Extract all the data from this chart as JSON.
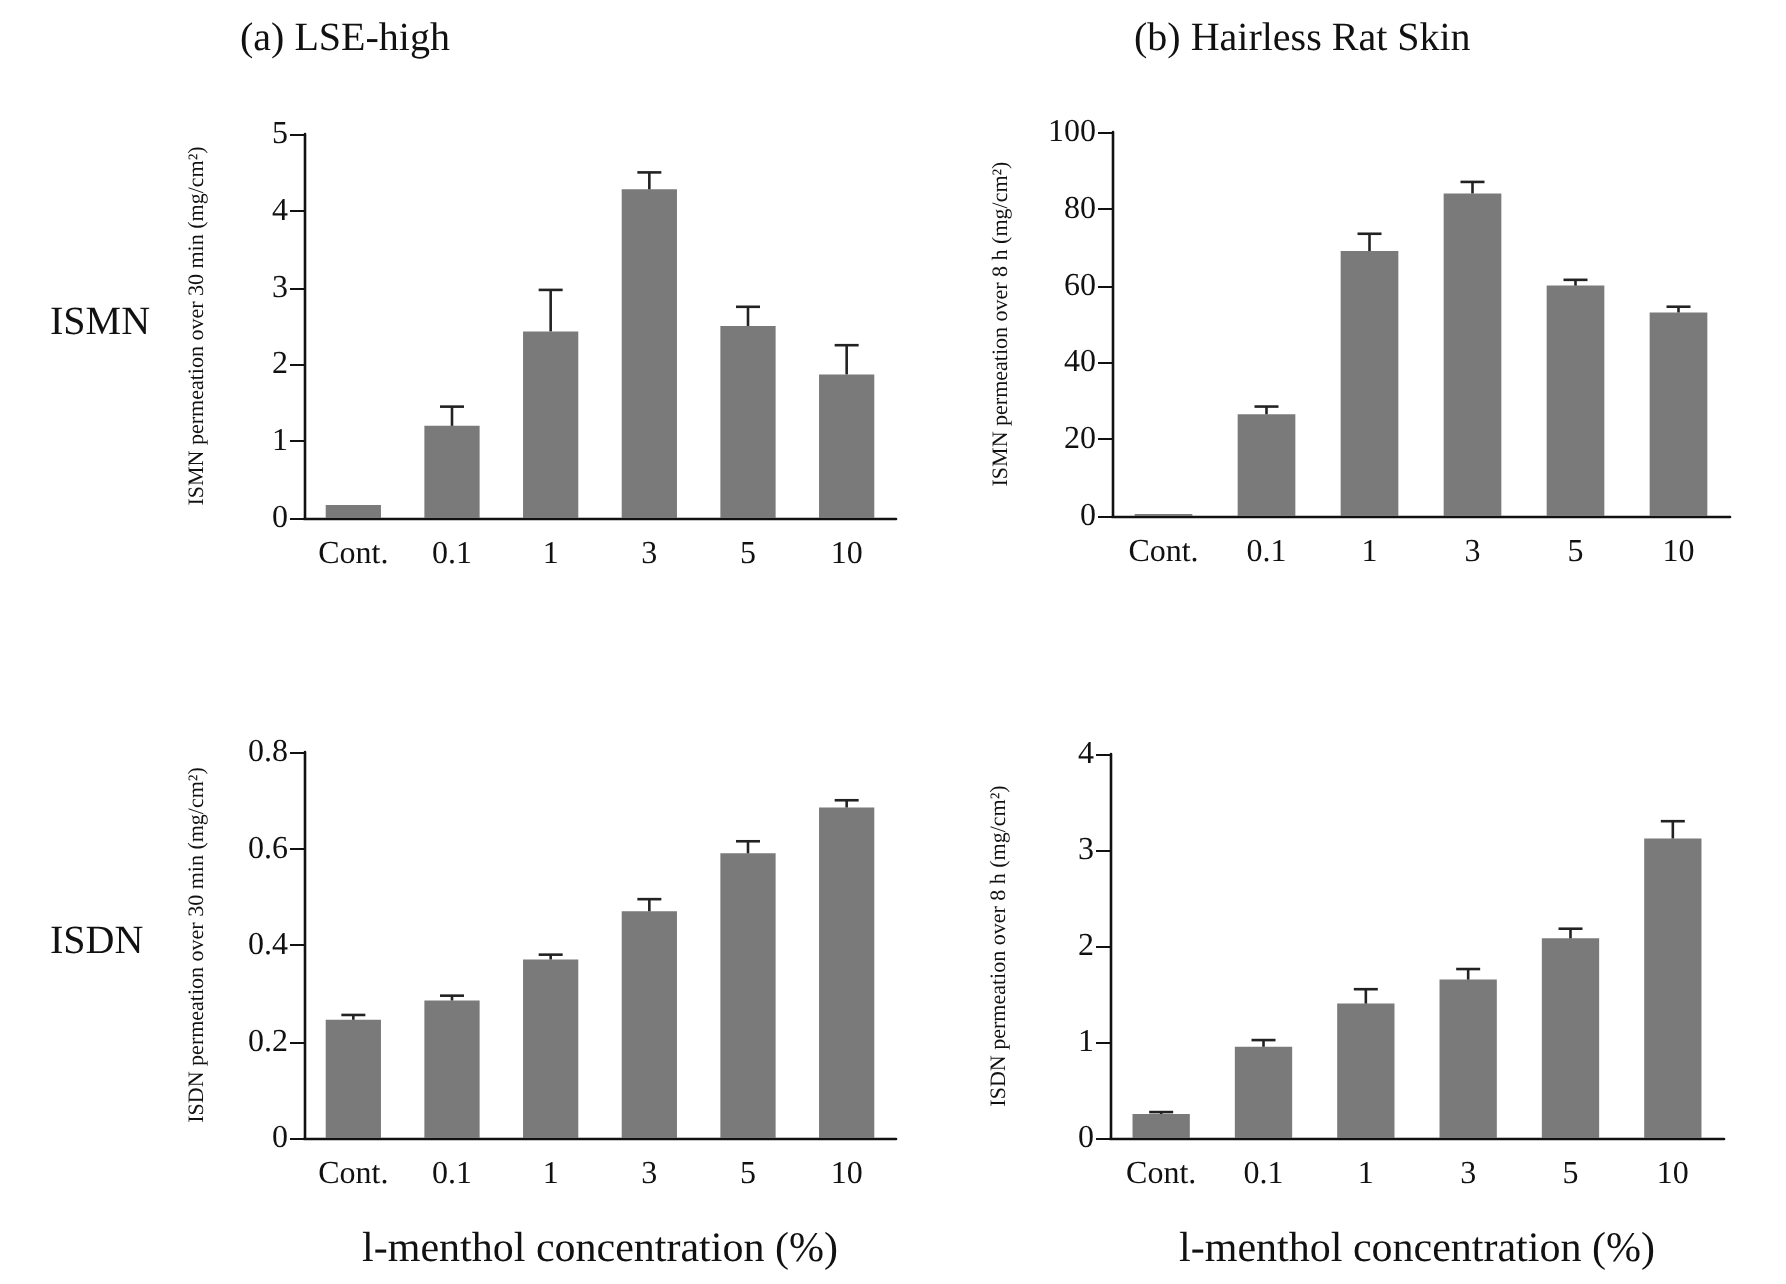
{
  "chart_data": [
    {
      "type": "bar",
      "title": "(a) LSE-high",
      "ylabel": "ISMN permeation over 30 min (mg/cm²)",
      "annotations": [
        "ISMN"
      ],
      "categories": [
        "Cont.",
        "0.1",
        "1",
        "3",
        "5",
        "10"
      ],
      "values": [
        0.17,
        1.2,
        2.43,
        4.28,
        2.5,
        1.87
      ],
      "errors": [
        null,
        [
          1.2,
          1.45
        ],
        [
          2.43,
          2.97
        ],
        [
          4.28,
          4.5
        ],
        [
          2.5,
          2.75
        ],
        [
          1.87,
          2.25
        ]
      ],
      "color": "#7a7a7a",
      "ylim": [
        0,
        5
      ],
      "yticks": [
        0,
        1,
        2,
        3,
        4,
        5
      ],
      "grid": false
    },
    {
      "type": "bar",
      "title": "(b) Hairless Rat Skin",
      "ylabel": "ISMN permeation over 8 h (mg/cm²)",
      "categories": [
        "Cont.",
        "0.1",
        "1",
        "3",
        "5",
        "10"
      ],
      "values": [
        0.5,
        26.5,
        69,
        84,
        60,
        53
      ],
      "errors": [
        null,
        [
          26.5,
          28.5
        ],
        [
          69,
          73.5
        ],
        [
          84,
          87
        ],
        [
          60,
          61.5
        ],
        [
          53,
          54.5
        ]
      ],
      "color": "#7a7a7a",
      "ylim": [
        0,
        100
      ],
      "yticks": [
        0,
        20,
        40,
        60,
        80,
        100
      ],
      "grid": false
    },
    {
      "type": "bar",
      "xlabel": "l-menthol concentration (%)",
      "ylabel": "ISDN permeation over 30 min (mg/cm²)",
      "annotations": [
        "ISDN"
      ],
      "categories": [
        "Cont.",
        "0.1",
        "1",
        "3",
        "5",
        "10"
      ],
      "values": [
        0.245,
        0.285,
        0.37,
        0.47,
        0.59,
        0.685
      ],
      "errors": [
        [
          0.245,
          0.255
        ],
        [
          0.285,
          0.295
        ],
        [
          0.37,
          0.38
        ],
        [
          0.47,
          0.495
        ],
        [
          0.59,
          0.615
        ],
        [
          0.685,
          0.7
        ]
      ],
      "color": "#7a7a7a",
      "ylim": [
        0,
        0.8
      ],
      "yticks": [
        0,
        0.2,
        0.4,
        0.6,
        0.8
      ],
      "grid": false
    },
    {
      "type": "bar",
      "xlabel": "l-menthol concentration (%)",
      "ylabel": "ISDN permeation over 8 h (mg/cm²)",
      "categories": [
        "Cont.",
        "0.1",
        "1",
        "3",
        "5",
        "10"
      ],
      "values": [
        0.25,
        0.95,
        1.4,
        1.65,
        2.08,
        3.12
      ],
      "errors": [
        [
          0.25,
          0.27
        ],
        [
          0.95,
          1.02
        ],
        [
          1.4,
          1.55
        ],
        [
          1.65,
          1.76
        ],
        [
          2.08,
          2.18
        ],
        [
          3.12,
          3.3
        ]
      ],
      "color": "#7a7a7a",
      "ylim": [
        0,
        4
      ],
      "yticks": [
        0,
        1,
        2,
        3,
        4
      ],
      "grid": false
    }
  ]
}
